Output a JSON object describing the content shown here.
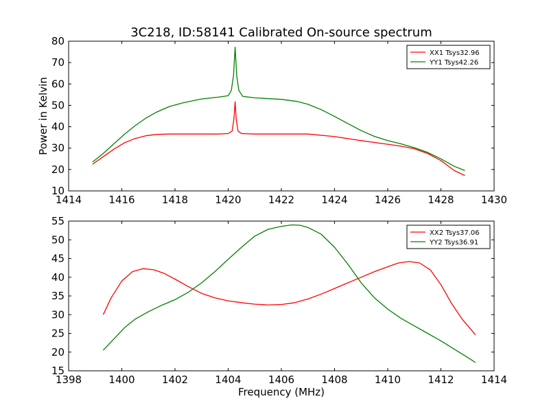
{
  "title": "3C218, ID:58141 Calibrated On-source spectrum",
  "colors": {
    "xx": "#ff0000",
    "yy": "#008000"
  },
  "chart_data": [
    {
      "type": "line",
      "title": "3C218, ID:58141 Calibrated On-source spectrum",
      "xlabel": "",
      "ylabel": "Power in Kelvin",
      "xlim": [
        1414,
        1430
      ],
      "ylim": [
        10,
        80
      ],
      "xticks": [
        1414,
        1416,
        1418,
        1420,
        1422,
        1424,
        1426,
        1428,
        1430
      ],
      "yticks": [
        10,
        20,
        30,
        40,
        50,
        60,
        70,
        80
      ],
      "grid": false,
      "legend": "top-right",
      "series": [
        {
          "name": "XX1 Tsys32.96",
          "color": "#ff0000",
          "x": [
            1414.9,
            1415.3,
            1415.7,
            1416.1,
            1416.5,
            1416.9,
            1417.3,
            1417.8,
            1418.3,
            1419.0,
            1419.6,
            1420.0,
            1420.15,
            1420.22,
            1420.26,
            1420.3,
            1420.37,
            1420.5,
            1421.0,
            1422.0,
            1423.0,
            1424.0,
            1425.0,
            1426.0,
            1426.5,
            1427.0,
            1427.5,
            1428.0,
            1428.5,
            1428.9
          ],
          "y": [
            22.5,
            26.0,
            29.5,
            32.5,
            34.5,
            35.8,
            36.4,
            36.6,
            36.6,
            36.6,
            36.6,
            36.8,
            38.0,
            44.0,
            51.7,
            44.0,
            38.0,
            36.8,
            36.6,
            36.6,
            36.6,
            35.4,
            33.5,
            31.8,
            30.9,
            29.7,
            27.5,
            24.2,
            19.5,
            17.2
          ]
        },
        {
          "name": "YY1 Tsys42.26",
          "color": "#008000",
          "x": [
            1414.9,
            1415.3,
            1415.7,
            1416.1,
            1416.5,
            1416.9,
            1417.3,
            1417.8,
            1418.3,
            1419.0,
            1419.6,
            1420.0,
            1420.12,
            1420.2,
            1420.26,
            1420.32,
            1420.4,
            1420.55,
            1421.0,
            1422.0,
            1422.6,
            1423.0,
            1423.5,
            1424.0,
            1424.5,
            1425.0,
            1425.5,
            1426.0,
            1426.5,
            1427.0,
            1427.5,
            1428.0,
            1428.5,
            1428.9
          ],
          "y": [
            23.5,
            27.5,
            32.0,
            36.5,
            40.5,
            44.0,
            46.8,
            49.5,
            51.2,
            53.0,
            53.8,
            54.5,
            57.0,
            64.0,
            77.2,
            64.0,
            57.0,
            54.2,
            53.5,
            52.8,
            51.8,
            50.5,
            48.0,
            44.8,
            41.5,
            38.2,
            35.5,
            33.5,
            32.0,
            30.2,
            28.0,
            25.0,
            21.5,
            19.5
          ]
        }
      ]
    },
    {
      "type": "line",
      "title": "",
      "xlabel": "Frequency (MHz)",
      "ylabel": "",
      "xlim": [
        1398,
        1414
      ],
      "ylim": [
        15,
        55
      ],
      "xticks": [
        1398,
        1400,
        1402,
        1404,
        1406,
        1408,
        1410,
        1412,
        1414
      ],
      "yticks": [
        15,
        20,
        25,
        30,
        35,
        40,
        45,
        50,
        55
      ],
      "grid": false,
      "legend": "top-right",
      "series": [
        {
          "name": "XX2 Tsys37.06",
          "color": "#ff0000",
          "x": [
            1399.3,
            1399.6,
            1400.0,
            1400.4,
            1400.8,
            1401.2,
            1401.6,
            1402.0,
            1402.5,
            1403.0,
            1403.5,
            1404.0,
            1404.5,
            1405.0,
            1405.5,
            1406.0,
            1406.5,
            1407.0,
            1407.5,
            1408.0,
            1408.5,
            1409.0,
            1409.5,
            1410.0,
            1410.4,
            1410.8,
            1411.2,
            1411.6,
            1412.0,
            1412.4,
            1412.8,
            1413.3
          ],
          "y": [
            30.0,
            34.5,
            39.0,
            41.5,
            42.3,
            42.0,
            41.0,
            39.5,
            37.5,
            35.7,
            34.5,
            33.7,
            33.2,
            32.8,
            32.6,
            32.7,
            33.2,
            34.2,
            35.5,
            37.0,
            38.5,
            40.0,
            41.5,
            42.8,
            43.8,
            44.2,
            43.8,
            42.0,
            38.0,
            33.0,
            28.8,
            24.6
          ]
        },
        {
          "name": "YY2 Tsys36.91",
          "color": "#008000",
          "x": [
            1399.3,
            1399.7,
            1400.1,
            1400.5,
            1401.0,
            1401.5,
            1402.0,
            1402.5,
            1403.0,
            1403.5,
            1404.0,
            1404.5,
            1405.0,
            1405.5,
            1406.0,
            1406.4,
            1406.7,
            1407.0,
            1407.5,
            1408.0,
            1408.5,
            1409.0,
            1409.5,
            1410.0,
            1410.5,
            1411.0,
            1411.5,
            1412.0,
            1412.5,
            1413.0,
            1413.3
          ],
          "y": [
            20.5,
            23.5,
            26.5,
            28.8,
            30.8,
            32.5,
            34.0,
            36.0,
            38.5,
            41.5,
            44.8,
            48.0,
            51.0,
            52.8,
            53.6,
            54.0,
            53.9,
            53.3,
            51.5,
            48.0,
            43.5,
            38.5,
            34.5,
            31.5,
            29.0,
            27.0,
            25.0,
            23.0,
            20.8,
            18.6,
            17.2
          ]
        }
      ]
    }
  ]
}
